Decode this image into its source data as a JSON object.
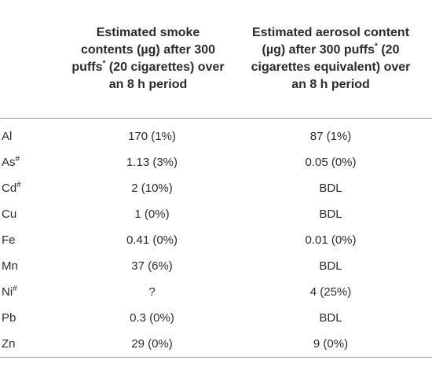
{
  "table": {
    "headers": [
      "",
      "Estimated smoke contents (µg) after 300 puffs* (20 cigarettes) over an 8 h period",
      "Estimated aerosol content (µg) after 300 puffs* (20 cigarettes equivalent) over an 8 h period"
    ],
    "header_parts": {
      "smoke_pre": "Estimated smoke contents (µg) after 300 puffs",
      "smoke_sup": "*",
      "smoke_post": " (20 cigarettes) over an 8 h period",
      "aerosol_pre": "Estimated aerosol content (µg) after 300 puffs",
      "aerosol_sup": "*",
      "aerosol_post": " (20 cigarettes equivalent) over an 8 h period"
    },
    "rows": [
      {
        "element": "Al",
        "mark": "",
        "smoke": "170 (1%)",
        "aerosol": "87 (1%)"
      },
      {
        "element": "As",
        "mark": "#",
        "smoke": "1.13 (3%)",
        "aerosol": "0.05 (0%)"
      },
      {
        "element": "Cd",
        "mark": "#",
        "smoke": "2 (10%)",
        "aerosol": "BDL"
      },
      {
        "element": "Cu",
        "mark": "",
        "smoke": "1 (0%)",
        "aerosol": "BDL"
      },
      {
        "element": "Fe",
        "mark": "",
        "smoke": "0.41 (0%)",
        "aerosol": "0.01 (0%)"
      },
      {
        "element": "Mn",
        "mark": "",
        "smoke": "37 (6%)",
        "aerosol": "BDL"
      },
      {
        "element": "Ni",
        "mark": "#",
        "smoke": "?",
        "aerosol": "4 (25%)"
      },
      {
        "element": "Pb",
        "mark": "",
        "smoke": "0.3 (0%)",
        "aerosol": "BDL"
      },
      {
        "element": "Zn",
        "mark": "",
        "smoke": "29 (0%)",
        "aerosol": "9 (0%)"
      }
    ]
  }
}
